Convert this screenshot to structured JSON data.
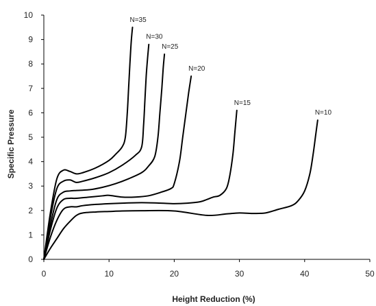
{
  "chart_data": {
    "type": "line",
    "title": "",
    "xlabel": "Height Reduction (%)",
    "ylabel": "Specific Pressure",
    "xlim": [
      0,
      50
    ],
    "ylim": [
      0,
      10
    ],
    "xticks": [
      "0",
      "10",
      "20",
      "30",
      "40",
      "50"
    ],
    "yticks": [
      "0",
      "1",
      "2",
      "3",
      "4",
      "5",
      "6",
      "7",
      "8",
      "9",
      "10"
    ],
    "grid": false,
    "legend": "none",
    "line_color": "#000000",
    "series": [
      {
        "name": "N=10",
        "x": [
          0,
          1,
          2,
          3,
          4,
          5,
          6,
          8,
          10,
          12,
          15,
          20,
          25,
          28,
          30,
          32,
          34,
          36,
          38,
          39,
          40,
          40.8,
          41.3,
          41.7,
          42
        ],
        "y": [
          0,
          0.45,
          0.85,
          1.25,
          1.55,
          1.8,
          1.9,
          1.94,
          1.96,
          1.98,
          1.99,
          1.98,
          1.8,
          1.86,
          1.9,
          1.88,
          1.9,
          2.05,
          2.2,
          2.4,
          2.8,
          3.5,
          4.3,
          5.1,
          5.7
        ]
      },
      {
        "name": "N=15",
        "x": [
          0,
          1,
          2,
          3,
          4,
          5,
          6,
          8,
          10,
          12,
          15,
          18,
          20,
          22,
          24,
          25,
          26,
          27,
          28,
          28.5,
          29,
          29.3,
          29.6
        ],
        "y": [
          0,
          0.9,
          1.6,
          2.05,
          2.15,
          2.15,
          2.2,
          2.25,
          2.28,
          2.3,
          2.32,
          2.3,
          2.28,
          2.3,
          2.36,
          2.45,
          2.55,
          2.62,
          2.9,
          3.4,
          4.3,
          5.2,
          6.1
        ]
      },
      {
        "name": "N=20",
        "x": [
          0,
          1,
          2,
          3,
          4,
          5,
          7,
          9,
          10,
          12,
          14,
          16,
          18,
          19.5,
          20,
          20.8,
          21.3,
          21.8,
          22.2,
          22.6
        ],
        "y": [
          0,
          1.2,
          2.1,
          2.45,
          2.5,
          2.5,
          2.55,
          2.6,
          2.62,
          2.55,
          2.55,
          2.6,
          2.75,
          2.9,
          3.1,
          4.0,
          5.0,
          6.0,
          6.8,
          7.5
        ]
      },
      {
        "name": "N=25",
        "x": [
          0,
          1,
          2,
          3,
          4,
          5,
          7,
          9,
          11,
          13,
          15,
          16,
          17,
          17.5,
          17.8,
          18.1,
          18.3,
          18.5
        ],
        "y": [
          0,
          1.4,
          2.45,
          2.75,
          2.8,
          2.82,
          2.85,
          2.95,
          3.1,
          3.3,
          3.55,
          3.8,
          4.2,
          5.0,
          6.0,
          7.0,
          7.8,
          8.4
        ]
      },
      {
        "name": "N=30",
        "x": [
          0,
          1,
          2,
          3,
          4,
          5,
          6,
          8,
          10,
          12,
          14,
          15,
          15.3,
          15.5,
          15.7,
          15.9,
          16.1
        ],
        "y": [
          0,
          1.7,
          2.9,
          3.2,
          3.25,
          3.15,
          3.2,
          3.35,
          3.55,
          3.85,
          4.25,
          4.6,
          5.5,
          6.5,
          7.5,
          8.2,
          8.8
        ]
      },
      {
        "name": "N=35",
        "x": [
          0,
          1,
          2,
          3,
          4,
          5,
          6,
          8,
          10,
          11,
          12,
          12.5,
          12.8,
          13,
          13.2,
          13.4,
          13.6
        ],
        "y": [
          0,
          1.9,
          3.3,
          3.65,
          3.6,
          3.5,
          3.55,
          3.75,
          4.05,
          4.3,
          4.6,
          5.0,
          6.0,
          7.0,
          8.0,
          8.9,
          9.5
        ]
      }
    ]
  }
}
